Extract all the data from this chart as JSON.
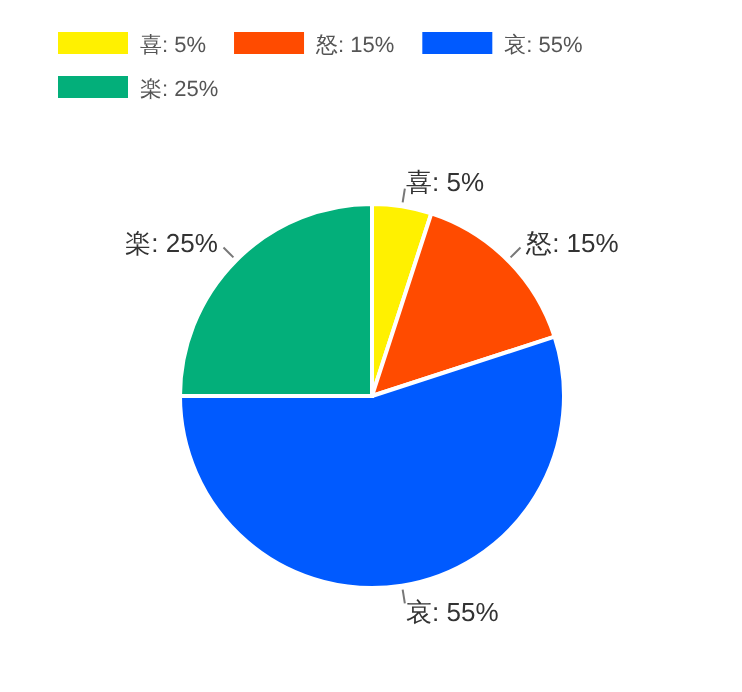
{
  "chart_data": {
    "type": "pie",
    "categories": [
      "喜: 5%",
      "怒: 15%",
      "哀: 55%",
      "楽: 25%"
    ],
    "values": [
      5,
      15,
      55,
      25
    ],
    "colors": [
      "#fff100",
      "#ff4b00",
      "#005aff",
      "#03af7a"
    ],
    "legend": "top left"
  }
}
